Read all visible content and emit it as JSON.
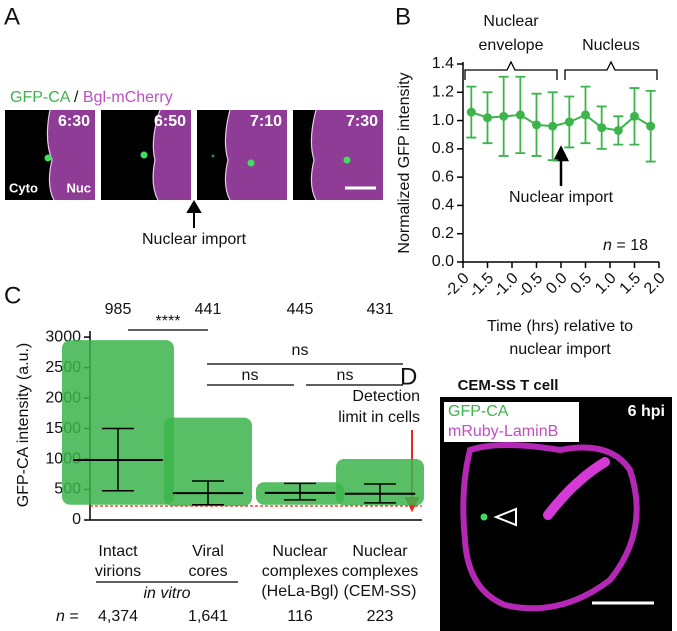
{
  "panel_a": {
    "letter": "A",
    "legend": [
      "GFP-CA",
      "/",
      "Bgl-mCherry"
    ],
    "times": [
      "6:30",
      "6:50",
      "7:10",
      "7:30"
    ],
    "cyto": "Cyto",
    "nuc": "Nuc",
    "annotation": "Nuclear import"
  },
  "panel_d": {
    "letter": "D",
    "title": "CEM-SS T cell",
    "time": "6 hpi",
    "legend": [
      "GFP-CA",
      "mRuby-LaminB"
    ]
  },
  "chart_data": [
    {
      "type": "line",
      "letter": "B",
      "ylabel": "Normalized GFP intensity",
      "xlabel": [
        "Time (hrs) relative to",
        "nuclear import"
      ],
      "brackets": [
        [
          "Nuclear",
          "envelope"
        ],
        [
          "Nucleus"
        ]
      ],
      "annotation": "Nuclear import",
      "n_note": [
        "n",
        "= 18"
      ],
      "x": [
        -1.83,
        -1.5,
        -1.17,
        -0.83,
        -0.5,
        -0.17,
        0.17,
        0.5,
        0.83,
        1.17,
        1.5,
        1.83
      ],
      "series": [
        {
          "color": "#3cb44b",
          "values": [
            1.06,
            1.02,
            1.03,
            1.04,
            0.97,
            0.96,
            0.99,
            1.04,
            0.95,
            0.93,
            1.03,
            0.96
          ],
          "errors": [
            0.18,
            0.18,
            0.28,
            0.27,
            0.22,
            0.24,
            0.18,
            0.2,
            0.15,
            0.1,
            0.2,
            0.25
          ]
        }
      ],
      "xlim": [
        -2,
        2
      ],
      "xticks": [
        {
          "value": -2,
          "label": "-2.0"
        },
        {
          "value": -1.5,
          "label": "-1.5"
        },
        {
          "value": -1,
          "label": "-1.0"
        },
        {
          "value": -0.5,
          "label": "-0.5"
        },
        {
          "value": 0,
          "label": "0.0"
        },
        {
          "value": 0.5,
          "label": "0.5"
        },
        {
          "value": 1,
          "label": "1.0"
        },
        {
          "value": 1.5,
          "label": "1.5"
        },
        {
          "value": 2,
          "label": "2.0"
        }
      ],
      "ylim": [
        0,
        1.4
      ],
      "yticks": [
        {
          "value": 0,
          "label": "0.0"
        },
        {
          "value": 0.2,
          "label": "0.2"
        },
        {
          "value": 0.4,
          "label": "0.4"
        },
        {
          "value": 0.6,
          "label": "0.6"
        },
        {
          "value": 0.8,
          "label": "0.8"
        },
        {
          "value": 1,
          "label": "1.0"
        },
        {
          "value": 1.2,
          "label": "1.2"
        },
        {
          "value": 1.4,
          "label": "1.4"
        }
      ]
    },
    {
      "type": "dot",
      "letter": "C",
      "ylabel": "GFP-CA intensity (a.u.)",
      "categories": [
        [
          "Intact",
          "virions"
        ],
        [
          "Viral",
          "cores"
        ],
        [
          "Nuclear",
          "complexes",
          "(HeLa-Bgl)"
        ],
        [
          "Nuclear",
          "complexes",
          "(CEM-SS)"
        ]
      ],
      "group_label": "in vitro",
      "values": [
        985,
        441,
        445,
        431
      ],
      "error_low": [
        480,
        250,
        330,
        280
      ],
      "error_high": [
        1500,
        640,
        600,
        590
      ],
      "range": [
        [
          250,
          2950
        ],
        [
          230,
          1680
        ],
        [
          250,
          620
        ],
        [
          240,
          1000
        ]
      ],
      "color": "#3cb44b",
      "significance": [
        "****",
        "ns",
        "ns",
        "ns"
      ],
      "detection_limit": {
        "value": 230,
        "label": [
          "Detection",
          "limit in cells"
        ],
        "color": "#e8281e"
      },
      "n_prefix": [
        "n",
        "="
      ],
      "counts": [
        {
          "value": 4374,
          "label": "4,374"
        },
        {
          "value": 1641,
          "label": "1,641"
        },
        116,
        223
      ],
      "ylim": [
        0,
        3100
      ],
      "yticks": [
        0,
        500,
        1000,
        1500,
        2000,
        2500,
        3000
      ]
    }
  ]
}
